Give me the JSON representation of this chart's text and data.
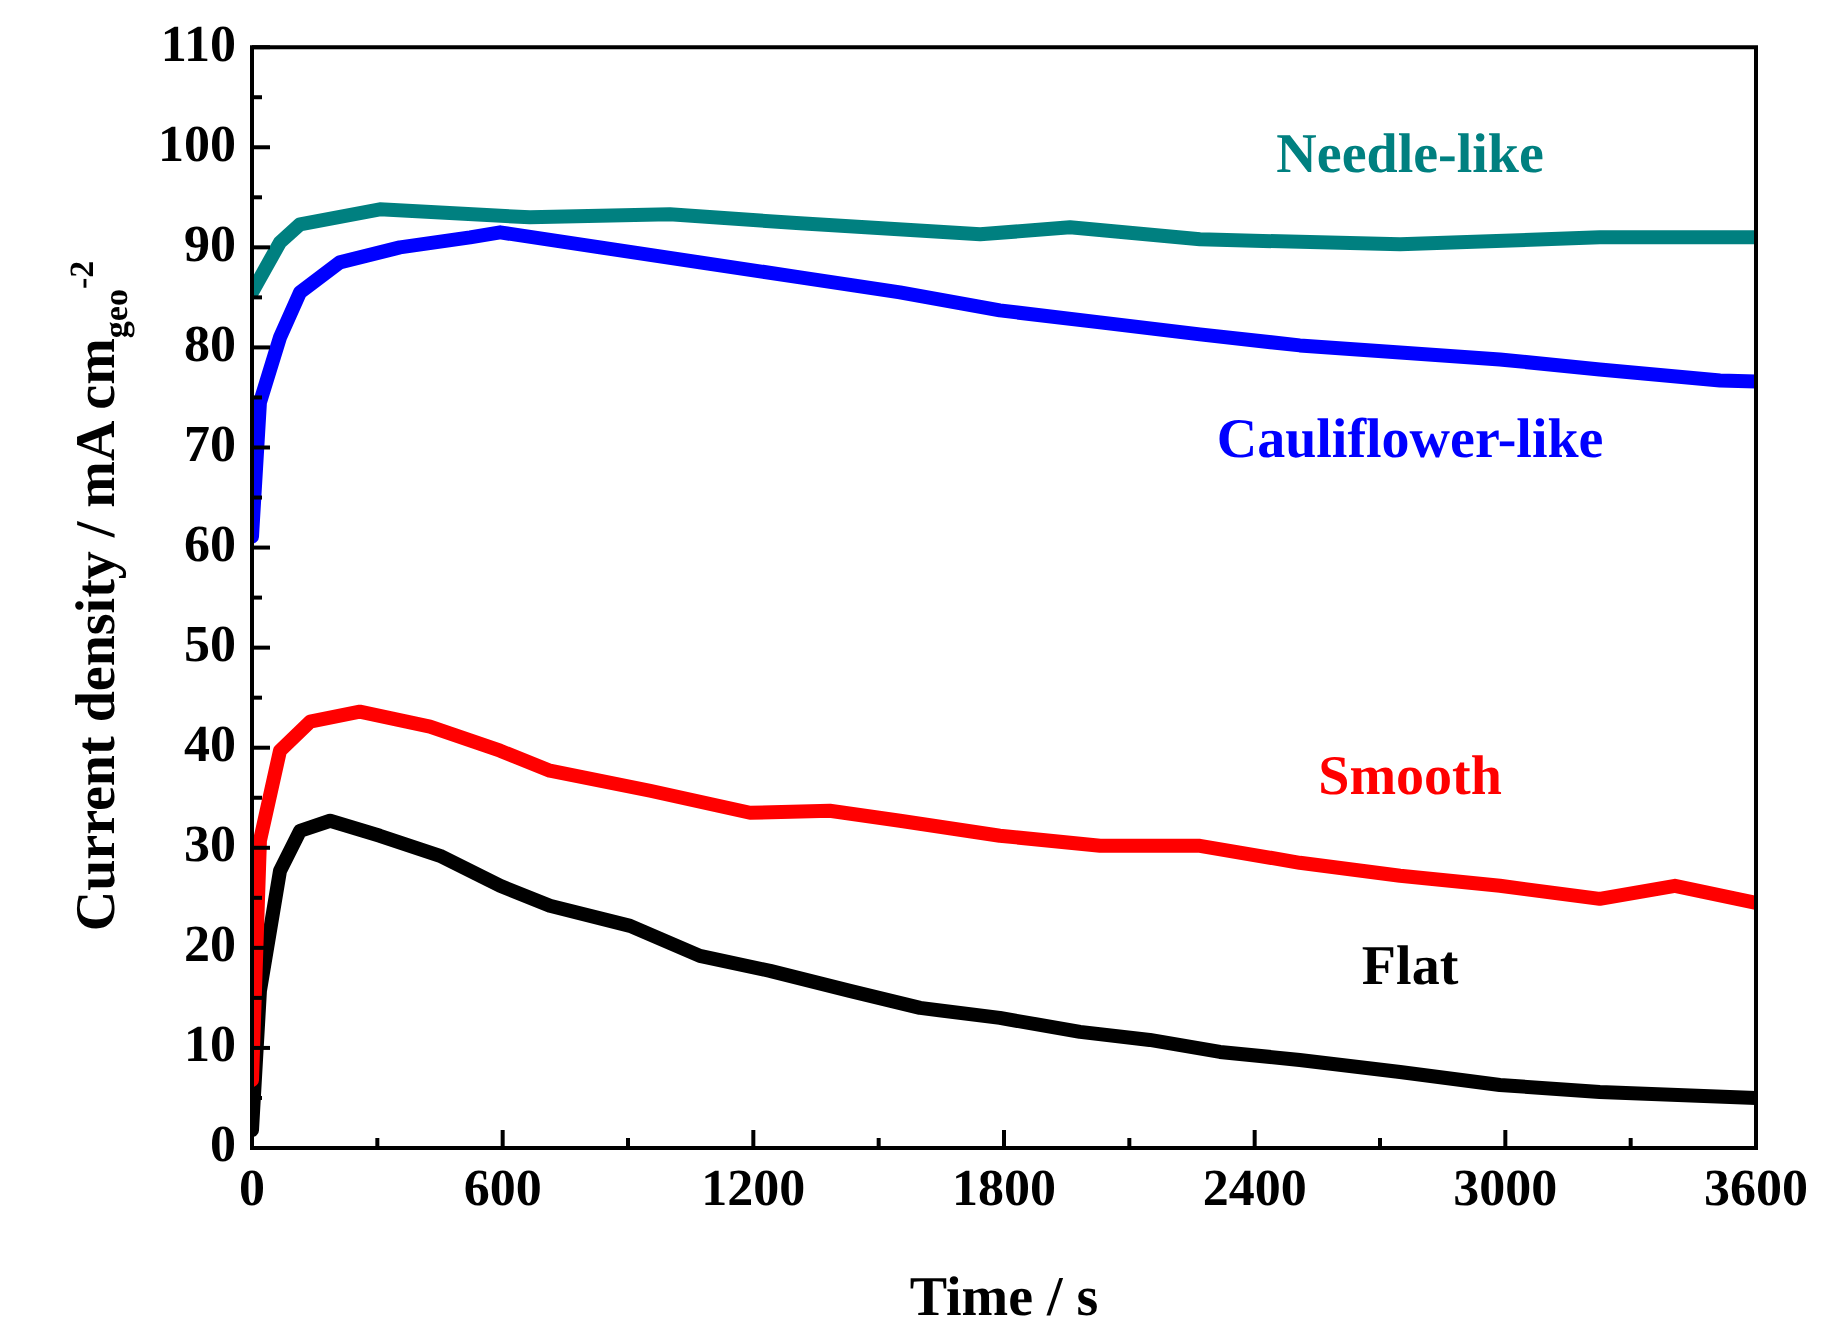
{
  "chart_data": {
    "type": "line",
    "xlabel": "Time / s",
    "ylabel": "Current density / mA cm$_{geo}$$^{-2}$",
    "xlim": [
      0,
      3600
    ],
    "ylim": [
      0,
      110
    ],
    "xticks": [
      0,
      {
        "value": 300,
        "label": null
      },
      600,
      {
        "value": 900,
        "label": null
      },
      1200,
      {
        "value": 1500,
        "label": null
      },
      1800,
      {
        "value": 2100,
        "label": null
      },
      2400,
      {
        "value": 2700,
        "label": null
      },
      3000,
      {
        "value": 3300,
        "label": null
      },
      3600
    ],
    "yticks": [
      0,
      {
        "value": 5,
        "label": null
      },
      10,
      {
        "value": 15,
        "label": null
      },
      20,
      {
        "value": 25,
        "label": null
      },
      30,
      {
        "value": 35,
        "label": null
      },
      40,
      {
        "value": 45,
        "label": null
      },
      50,
      {
        "value": 55,
        "label": null
      },
      60,
      {
        "value": 65,
        "label": null
      },
      70,
      {
        "value": 75,
        "label": null
      },
      80,
      {
        "value": 85,
        "label": null
      },
      90,
      {
        "value": 95,
        "label": null
      },
      100,
      {
        "value": 105,
        "label": null
      },
      110
    ],
    "grid": false,
    "legend": false,
    "marker": "none",
    "line_style": "solid",
    "series": [
      {
        "name": "Needle-like",
        "color": "#008080",
        "x": [
          0,
          67,
          115,
          306,
          665,
          1000,
          1312,
          1743,
          1958,
          2269,
          2748,
          3226,
          3514,
          3600
        ],
        "values": [
          85.5,
          90.5,
          92.3,
          93.8,
          93.0,
          93.3,
          92.4,
          91.3,
          92.0,
          90.8,
          90.3,
          91.0,
          91.0,
          91.0
        ]
      },
      {
        "name": "Cauliflower-like",
        "color": "#0000ff",
        "x": [
          0,
          19,
          67,
          115,
          210,
          354,
          522,
          594,
          833,
          1072,
          1312,
          1551,
          1790,
          2030,
          2269,
          2508,
          2748,
          2987,
          3226,
          3514,
          3600
        ],
        "values": [
          61.1,
          74.5,
          81.0,
          85.5,
          88.5,
          90.0,
          91.0,
          91.5,
          90.0,
          88.5,
          87.0,
          85.5,
          83.7,
          82.5,
          81.3,
          80.2,
          79.5,
          78.8,
          77.8,
          76.7,
          76.6
        ]
      },
      {
        "name": "Smooth",
        "color": "#ff0000",
        "x": [
          0,
          19,
          67,
          139,
          258,
          426,
          594,
          713,
          953,
          1192,
          1383,
          1551,
          1790,
          2030,
          2269,
          2508,
          2748,
          2987,
          3226,
          3406,
          3600
        ],
        "values": [
          6.8,
          30.7,
          39.7,
          42.6,
          43.6,
          42.1,
          39.7,
          37.7,
          35.7,
          33.5,
          33.7,
          32.7,
          31.2,
          30.2,
          30.2,
          28.5,
          27.2,
          26.2,
          24.9,
          26.2,
          24.5
        ]
      },
      {
        "name": "Flat",
        "color": "#000000",
        "x": [
          0,
          19,
          67,
          115,
          187,
          306,
          450,
          594,
          713,
          905,
          1072,
          1240,
          1431,
          1599,
          1790,
          1982,
          2149,
          2317,
          2508,
          2748,
          2987,
          3226,
          3600
        ],
        "values": [
          1.8,
          15.7,
          27.7,
          31.7,
          32.7,
          31.2,
          29.2,
          26.2,
          24.2,
          22.2,
          19.2,
          17.7,
          15.7,
          14.0,
          13.0,
          11.6,
          10.8,
          9.6,
          8.8,
          7.6,
          6.3,
          5.6,
          5.0
        ]
      }
    ]
  }
}
